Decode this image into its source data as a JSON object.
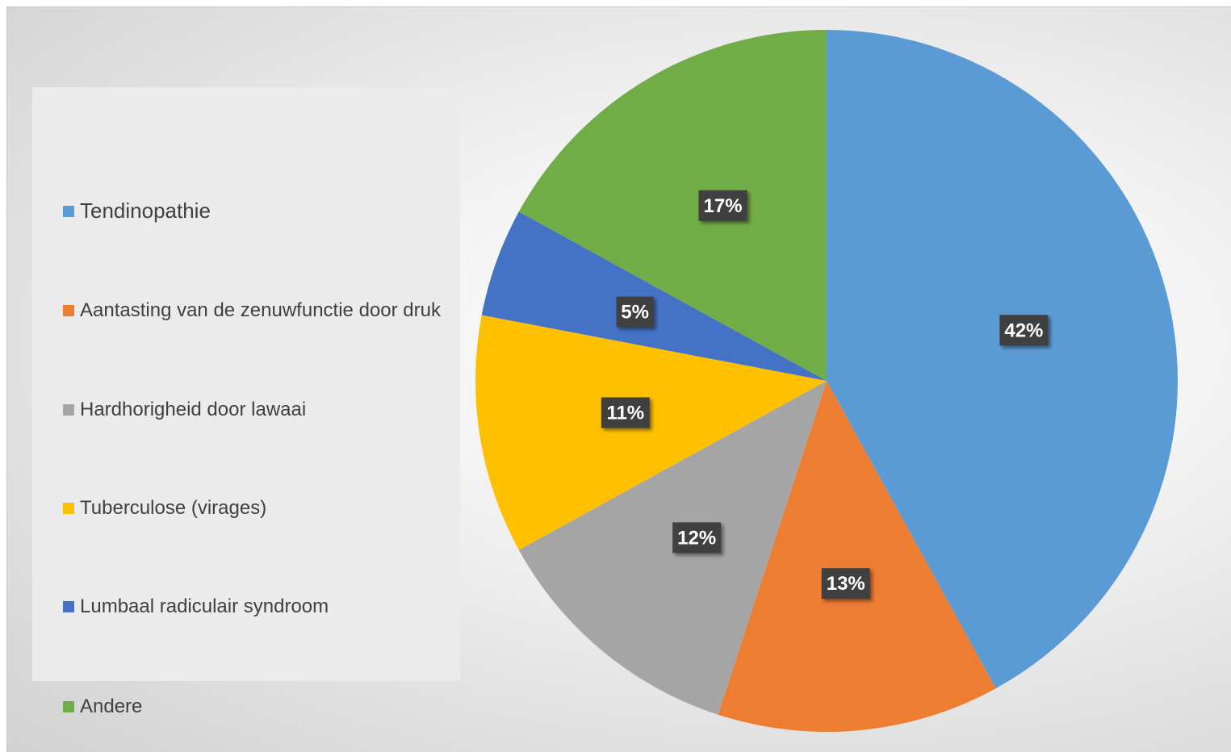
{
  "chart_data": {
    "type": "pie",
    "title": "",
    "categories": [
      "Tendinopathie",
      "Aantasting van de zenuwfunctie door druk",
      "Hardhorigheid door lawaai",
      "Tuberculose (virages)",
      "Lumbaal radiculair syndroom",
      "Andere"
    ],
    "values": [
      42,
      13,
      12,
      11,
      5,
      17
    ],
    "value_labels": [
      "42%",
      "13%",
      "12%",
      "11%",
      "5%",
      "17%"
    ],
    "colors": [
      "#5b9bd5",
      "#ed7d31",
      "#a5a5a5",
      "#ffc000",
      "#4472c4",
      "#70ad47"
    ],
    "legend_position": "left",
    "start_angle": "12 o'clock",
    "direction": "clockwise"
  }
}
